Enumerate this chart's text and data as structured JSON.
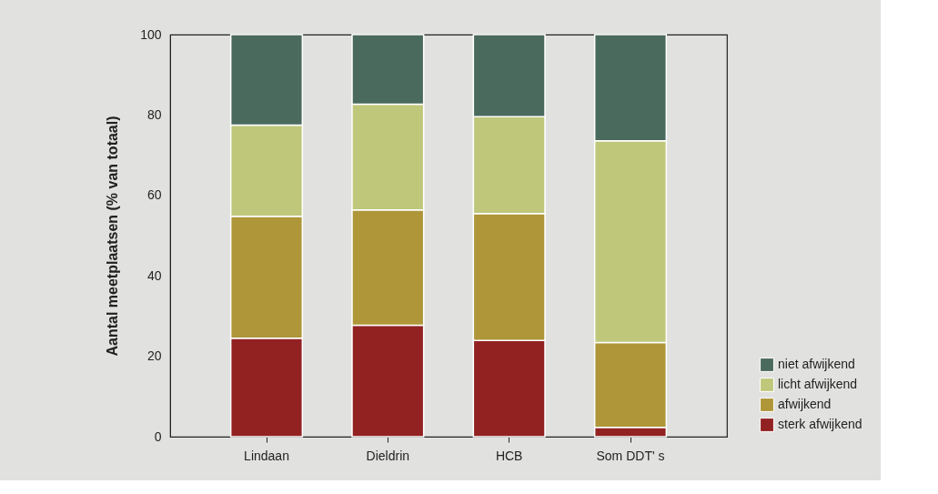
{
  "chart_data": {
    "type": "bar",
    "stacked": true,
    "ylabel": "Aantal meetplaatsen (% van totaal)",
    "categories": [
      "Lindaan",
      "Dieldrin",
      "HCB",
      "Som DDT' s"
    ],
    "series": [
      {
        "name": "sterk afwijkend",
        "color": "#922222",
        "values": [
          24.5,
          27.7,
          23.9,
          2.3
        ]
      },
      {
        "name": "afwijkend",
        "color": "#ae9639",
        "values": [
          30.3,
          28.7,
          31.6,
          21.1
        ]
      },
      {
        "name": "licht afwijkend",
        "color": "#bfc77b",
        "values": [
          22.7,
          26.3,
          24.1,
          50.2
        ]
      },
      {
        "name": "niet afwijkend",
        "color": "#4b6a5e",
        "values": [
          22.5,
          17.3,
          20.4,
          26.4
        ]
      }
    ],
    "ylim": [
      0,
      100
    ],
    "yticks": [
      0,
      20,
      40,
      60,
      80,
      100
    ],
    "legend": "bottom right"
  }
}
